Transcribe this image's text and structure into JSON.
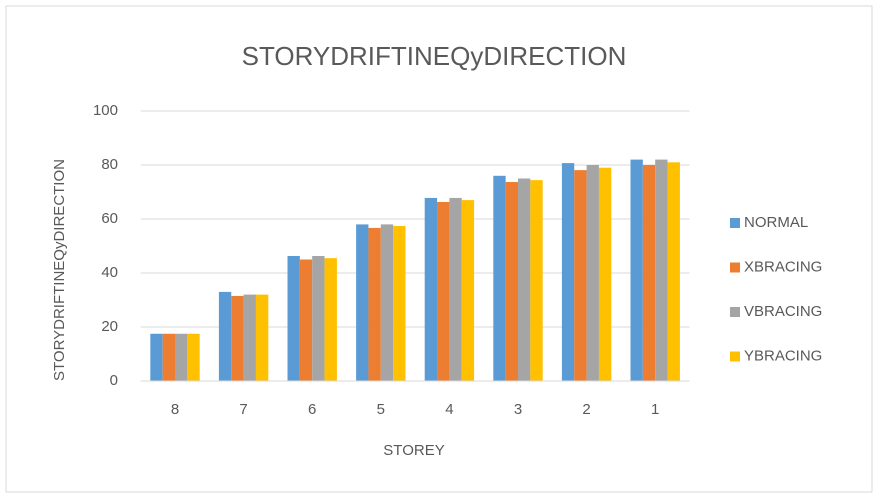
{
  "chart_data": {
    "type": "bar",
    "title": "STORYDRIFTINEQyDIRECTION",
    "x_label": "STOREY",
    "y_label": "STORYDRIFTINEQyDIRECTION",
    "categories": [
      "8",
      "7",
      "6",
      "5",
      "4",
      "3",
      "2",
      "1"
    ],
    "series": [
      {
        "name": "NORMAL",
        "color": "#5b9bd5",
        "values": [
          17.5,
          33,
          46.3,
          58,
          67.8,
          76,
          80.7,
          82
        ]
      },
      {
        "name": "XBRACING",
        "color": "#ed7d31",
        "values": [
          17.5,
          31.5,
          45,
          56.7,
          66.3,
          73.7,
          78.1,
          80
        ]
      },
      {
        "name": "VBRACING",
        "color": "#a5a5a5",
        "values": [
          17.5,
          32,
          46.3,
          58,
          67.8,
          75,
          80,
          82
        ]
      },
      {
        "name": "YBRACING",
        "color": "#ffc000",
        "values": [
          17.5,
          32,
          45.5,
          57.4,
          67,
          74.4,
          79,
          81
        ]
      }
    ],
    "ylim": [
      0,
      100
    ],
    "yticks": [
      0,
      20,
      40,
      60,
      80,
      100
    ],
    "grid": true,
    "legend": "right"
  }
}
